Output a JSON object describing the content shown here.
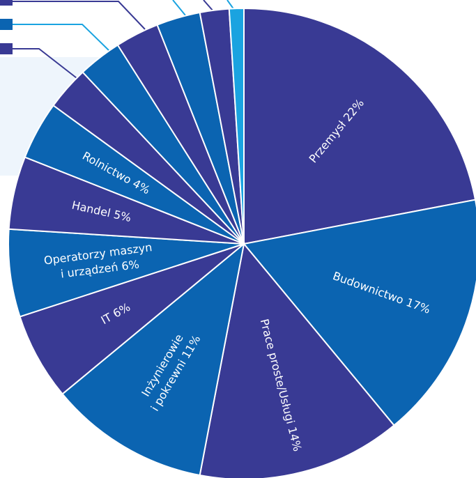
{
  "chart_data": {
    "type": "pie",
    "categories": [
      "Przemysł",
      "Budownictwo",
      "Prace proste/Usługi",
      "Inżynierowie i pokrewni",
      "IT",
      "Operatorzy maszyn i urządzeń",
      "Handel",
      "Rolnictwo",
      null,
      null,
      null,
      null,
      null,
      null
    ],
    "values": [
      22,
      17,
      14,
      11,
      6,
      6,
      5,
      4,
      3,
      3,
      3,
      3,
      2,
      1
    ],
    "value_labels": [
      [
        "Przemysł 22%"
      ],
      [
        "Budownictwo 17%"
      ],
      [
        "Prace proste/Usługi 14%"
      ],
      [
        "Inżynierowie",
        "i pokrewni 11%"
      ],
      [
        "IT 6%"
      ],
      [
        "Operatorzy maszyn",
        "i urządzeń 6%"
      ],
      [
        "Handel 5%"
      ],
      [
        "Rolnictwo 4%"
      ],
      null,
      null,
      null,
      null,
      null,
      null
    ],
    "colors": [
      "#393a94",
      "#0b64b1",
      "#393a94",
      "#0b64b1",
      "#393a94",
      "#0b64b1",
      "#393a94",
      "#0b64b1",
      "#393a94",
      "#0b64b1",
      "#393a94",
      "#0b64b1",
      "#393a94",
      "#1aa3e0"
    ]
  }
}
